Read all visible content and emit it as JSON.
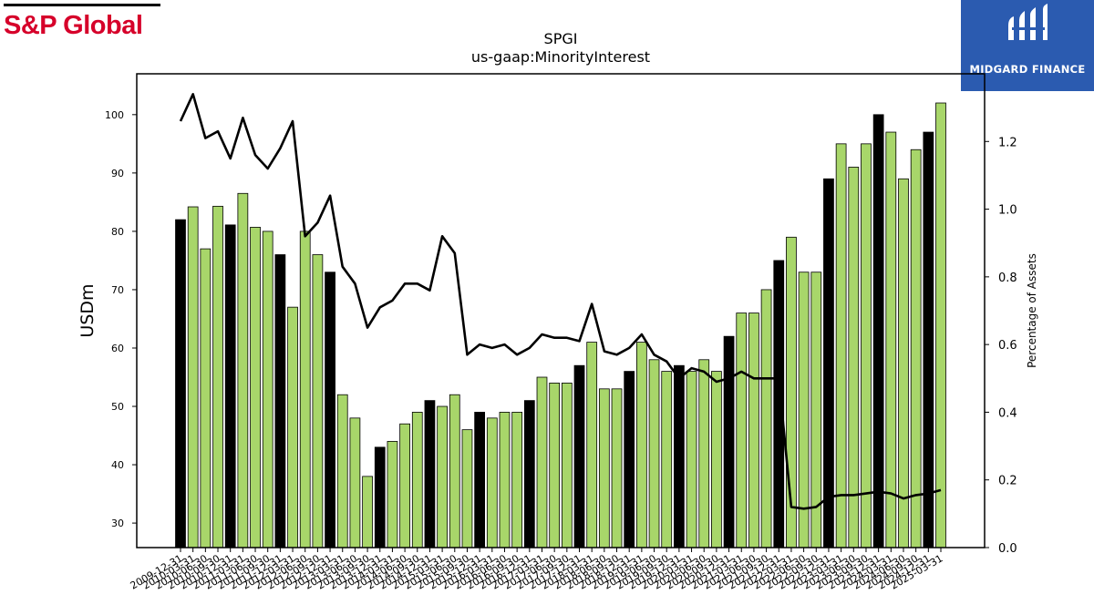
{
  "logos": {
    "left_text": "S&P Global",
    "right_text": "MIDGARD FINANCE",
    "left_color": "#d6002a",
    "right_bg": "#2b5bb0"
  },
  "chart_data": {
    "type": "bar",
    "title": "SPGI",
    "subtitle": "us-gaap:MinorityInterest",
    "ylabel": "USDm",
    "y2label": "Percentage of Assets",
    "ylim": [
      25.8,
      107
    ],
    "y2lim": [
      0,
      1.4
    ],
    "yticks": [
      30,
      40,
      50,
      60,
      70,
      80,
      90,
      100
    ],
    "y2ticks": [
      0.0,
      0.2,
      0.4,
      0.6,
      0.8,
      1.0,
      1.2
    ],
    "grid": false,
    "colors": {
      "annual_bar": "#000000",
      "quarter_bar": "#a8d66a",
      "line": "#000000"
    },
    "categories": [
      "2009-12-31",
      "2010-03-31",
      "2010-06-30",
      "2010-09-30",
      "2010-12-31",
      "2011-03-31",
      "2011-06-30",
      "2011-09-30",
      "2011-12-31",
      "2012-03-31",
      "2012-06-30",
      "2012-09-30",
      "2012-12-31",
      "2013-03-31",
      "2013-06-30",
      "2013-09-30",
      "2013-12-31",
      "2014-03-31",
      "2014-06-30",
      "2014-09-30",
      "2014-12-31",
      "2015-03-31",
      "2015-06-30",
      "2015-09-30",
      "2015-12-31",
      "2016-03-31",
      "2016-06-30",
      "2016-09-30",
      "2016-12-31",
      "2017-03-31",
      "2017-06-30",
      "2017-09-30",
      "2017-12-31",
      "2018-03-31",
      "2018-06-30",
      "2018-09-30",
      "2018-12-31",
      "2019-03-31",
      "2019-06-30",
      "2019-09-30",
      "2019-12-31",
      "2020-03-31",
      "2020-06-30",
      "2020-09-30",
      "2020-12-31",
      "2021-03-31",
      "2021-06-30",
      "2021-09-30",
      "2021-12-31",
      "2022-03-31",
      "2022-06-30",
      "2022-09-30",
      "2022-12-31",
      "2023-03-31",
      "2023-06-30",
      "2023-09-30",
      "2023-12-31",
      "2024-03-31",
      "2024-06-30",
      "2024-09-30",
      "2024-12-31",
      "2025-03-31"
    ],
    "series": [
      {
        "type": "bar",
        "values": [
          82,
          84.2,
          77,
          84.3,
          81.1,
          86.5,
          80.7,
          80,
          76,
          67,
          80,
          76,
          73,
          52,
          48,
          38,
          43,
          44,
          47,
          49,
          51,
          50,
          52,
          46,
          49,
          48,
          49,
          49,
          51,
          55,
          54,
          54,
          57,
          61,
          53,
          53,
          56,
          61,
          58,
          56,
          57,
          56,
          58,
          56,
          62,
          66,
          66,
          70,
          75,
          79,
          73,
          73,
          89,
          95,
          91,
          95,
          100,
          97,
          89,
          94,
          97,
          102
        ],
        "annual": [
          true,
          false,
          false,
          false,
          true,
          false,
          false,
          false,
          true,
          false,
          false,
          false,
          true,
          false,
          false,
          false,
          true,
          false,
          false,
          false,
          true,
          false,
          false,
          false,
          true,
          false,
          false,
          false,
          true,
          false,
          false,
          false,
          true,
          false,
          false,
          false,
          true,
          false,
          false,
          false,
          true,
          false,
          false,
          false,
          true,
          false,
          false,
          false,
          true,
          false,
          false,
          false,
          true,
          false,
          false,
          false,
          true,
          false,
          false,
          false,
          true,
          false
        ]
      },
      {
        "type": "line",
        "axis": "right",
        "values": [
          1.26,
          1.34,
          1.21,
          1.23,
          1.15,
          1.27,
          1.16,
          1.12,
          1.18,
          1.26,
          0.92,
          0.96,
          1.04,
          0.83,
          0.78,
          0.65,
          0.71,
          0.73,
          0.78,
          0.78,
          0.76,
          0.92,
          0.87,
          0.57,
          0.6,
          0.59,
          0.6,
          0.57,
          0.59,
          0.63,
          0.62,
          0.62,
          0.61,
          0.72,
          0.58,
          0.57,
          0.59,
          0.63,
          0.57,
          0.55,
          0.5,
          0.53,
          0.52,
          0.49,
          0.5,
          0.52,
          0.5,
          0.5,
          0.5,
          0.12,
          0.115,
          0.12,
          0.15,
          0.155,
          0.155,
          0.16,
          0.165,
          0.16,
          0.145,
          0.155,
          0.16,
          0.17
        ]
      }
    ]
  }
}
